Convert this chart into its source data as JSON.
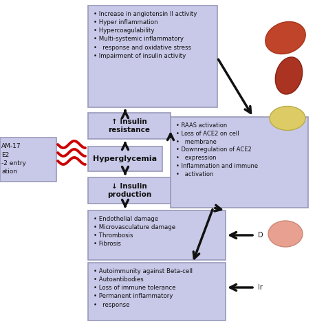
{
  "bg_color": "#ffffff",
  "box_color": "#c8c8e8",
  "box_edge_color": "#9999bb",
  "arrow_color": "#111111",
  "red_wave_color": "#cc0000",
  "text_color": "#111111",
  "left_box_text": "AM-17\nE2\n-2 entry\nation",
  "hyperglycemia_text": "Hyperglycemia",
  "insulin_resistance_text": "↑ Insulin\nresistance",
  "insulin_production_text": "↓ Insulin\nproduction",
  "top_box_bullets": [
    "Increase in angiotensin II activity",
    "Hyper inflammation",
    "Hypercoagulability",
    "Multi-systemic inflammatory",
    "  response and oxidative stress",
    "Impairment of insulin activity"
  ],
  "raas_box_bullets": [
    "RAAS activation",
    "Loss of ACE2 on cell",
    "  membrane",
    "Downregulation of ACE2",
    "  expression",
    "Inflammation and immune",
    "  activation"
  ],
  "endo_box_bullets": [
    "Endothelial damage",
    "Microvasculature damage",
    "Thrombosis",
    "Fibrosis"
  ],
  "auto_box_bullets": [
    "Autoimmunity against Beta-cell",
    "Autoantibodies",
    "Loss of immune tolerance",
    "Permanent inflammatory",
    "  response"
  ]
}
